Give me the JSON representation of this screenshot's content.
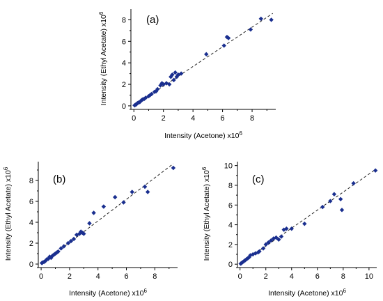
{
  "chart_data": [
    {
      "type": "scatter",
      "panel_label": "(a)",
      "xlabel": "Intensity (Acetone) x10",
      "xlabel_exp": "6",
      "ylabel": "Intensity (Ethyl Acetate) x10",
      "ylabel_exp": "6",
      "xlim": [
        -0.2,
        9.6
      ],
      "ylim": [
        -0.2,
        9.0
      ],
      "xticks": [
        0,
        2,
        4,
        6,
        8
      ],
      "yticks": [
        0,
        2,
        4,
        6,
        8
      ],
      "grid": false,
      "fit_line": {
        "x": [
          0,
          9.4
        ],
        "y": [
          0,
          8.6
        ]
      },
      "points": {
        "x": [
          0.05,
          0.1,
          0.15,
          0.2,
          0.25,
          0.3,
          0.4,
          0.5,
          0.55,
          0.6,
          0.7,
          0.8,
          1.0,
          1.1,
          1.2,
          1.4,
          1.5,
          1.6,
          1.8,
          1.9,
          2.0,
          2.2,
          2.4,
          2.5,
          2.6,
          2.7,
          2.8,
          2.9,
          3.0,
          3.2,
          4.9,
          6.1,
          6.3,
          6.4,
          7.9,
          8.6,
          9.3
        ],
        "y": [
          0.05,
          0.1,
          0.12,
          0.2,
          0.25,
          0.3,
          0.35,
          0.5,
          0.55,
          0.6,
          0.65,
          0.75,
          0.9,
          1.0,
          1.1,
          1.3,
          1.35,
          1.55,
          1.9,
          2.1,
          2.0,
          2.1,
          2.0,
          2.7,
          2.9,
          2.4,
          3.1,
          2.7,
          2.9,
          3.0,
          4.8,
          5.6,
          6.4,
          6.3,
          7.1,
          8.1,
          8.0
        ]
      }
    },
    {
      "type": "scatter",
      "panel_label": "(b)",
      "xlabel": "Intensity (Acetone) x10",
      "xlabel_exp": "6",
      "ylabel": "Intensity (Ethyl Acetate) x10",
      "ylabel_exp": "6",
      "xlim": [
        -0.2,
        9.6
      ],
      "ylim": [
        -0.2,
        9.8
      ],
      "xticks": [
        0,
        2,
        4,
        6,
        8
      ],
      "yticks": [
        0,
        2,
        4,
        6,
        8
      ],
      "grid": false,
      "fit_line": {
        "x": [
          0,
          9.3
        ],
        "y": [
          0,
          9.6
        ]
      },
      "points": {
        "x": [
          0.05,
          0.1,
          0.2,
          0.3,
          0.4,
          0.5,
          0.6,
          0.7,
          0.8,
          0.9,
          1.0,
          1.1,
          1.2,
          1.4,
          1.6,
          1.9,
          2.1,
          2.3,
          2.5,
          2.7,
          2.8,
          2.9,
          3.0,
          3.4,
          3.7,
          4.4,
          5.2,
          5.8,
          6.4,
          7.3,
          7.5,
          9.3
        ],
        "y": [
          0.1,
          0.15,
          0.2,
          0.3,
          0.45,
          0.5,
          0.7,
          0.6,
          0.8,
          0.9,
          1.0,
          1.1,
          1.2,
          1.5,
          1.7,
          2.0,
          2.2,
          2.4,
          2.8,
          2.9,
          3.1,
          3.0,
          2.9,
          3.9,
          4.9,
          5.5,
          6.4,
          5.9,
          6.9,
          7.4,
          6.9,
          9.2
        ]
      }
    },
    {
      "type": "scatter",
      "panel_label": "(c)",
      "xlabel": "Intensity (Acetone) x10",
      "xlabel_exp": "6",
      "ylabel": "Intensity (Ethyl Acetate) x10",
      "ylabel_exp": "6",
      "xlim": [
        -0.2,
        10.6
      ],
      "ylim": [
        -0.2,
        10.4
      ],
      "xticks": [
        0,
        2,
        4,
        6,
        8,
        10
      ],
      "yticks": [
        0,
        2,
        4,
        6,
        8,
        10
      ],
      "grid": false,
      "fit_line": {
        "x": [
          0,
          10.5
        ],
        "y": [
          0,
          9.6
        ]
      },
      "points": {
        "x": [
          0.05,
          0.1,
          0.2,
          0.3,
          0.4,
          0.5,
          0.6,
          0.7,
          0.8,
          1.0,
          1.2,
          1.4,
          1.5,
          1.8,
          2.0,
          2.2,
          2.4,
          2.6,
          2.8,
          3.0,
          3.2,
          3.4,
          3.6,
          4.0,
          5.0,
          6.4,
          7.0,
          7.3,
          7.8,
          7.9,
          8.8,
          10.5
        ],
        "y": [
          0.05,
          0.1,
          0.2,
          0.3,
          0.4,
          0.5,
          0.6,
          0.7,
          0.9,
          1.0,
          1.1,
          1.2,
          1.3,
          1.6,
          2.0,
          2.2,
          2.4,
          2.6,
          2.7,
          2.5,
          2.8,
          3.5,
          3.6,
          3.6,
          4.1,
          5.8,
          6.4,
          7.1,
          6.6,
          5.5,
          8.2,
          9.5
        ]
      }
    }
  ]
}
